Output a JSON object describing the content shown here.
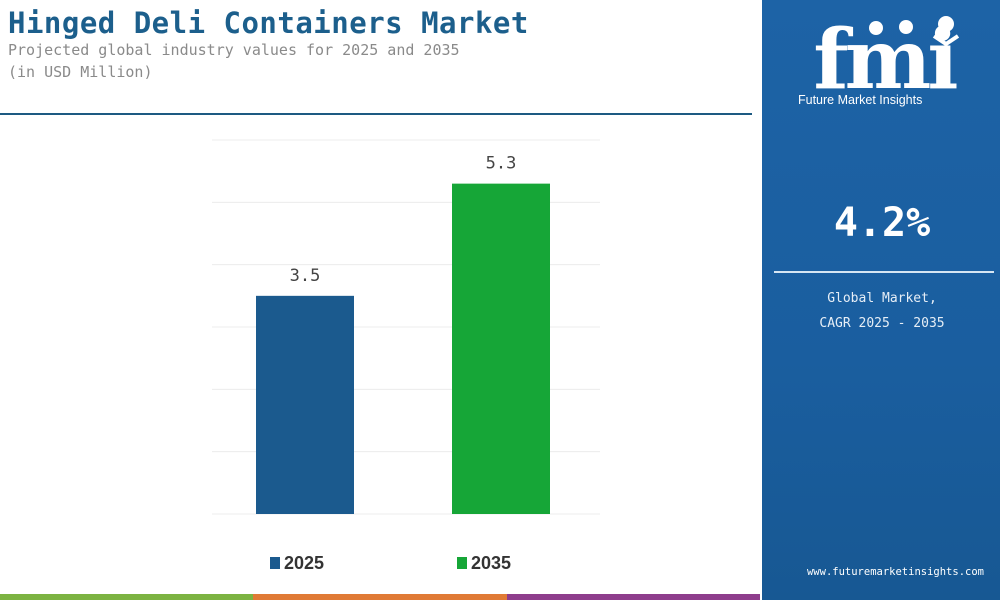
{
  "title": "Hinged Deli Containers Market",
  "subtitle_line1": "Projected global industry values for 2025 and 2035",
  "subtitle_line2": "(in USD Million)",
  "sidebar": {
    "logo_text": "fmi",
    "logo_tagline": "Future Market Insights",
    "cagr_value": "4.2%",
    "cagr_label": "Global Market,\nCAGR 2025 - 2035",
    "website": "www.futuremarketinsights.com"
  },
  "colors": {
    "title": "#1c5f8c",
    "sidebar_bg": "#1a5e9f",
    "bar_2025": "#1b5a8e",
    "bar_2035": "#16a637"
  },
  "chart_data": {
    "type": "bar",
    "categories": [
      "2025",
      "2035"
    ],
    "values": [
      3.5,
      5.3
    ],
    "data_labels": [
      "3.5",
      "5.3"
    ],
    "colors": [
      "#1b5a8e",
      "#16a637"
    ],
    "legend": [
      "2025",
      "2035"
    ],
    "legend_position": "bottom",
    "ylim": [
      0,
      6
    ],
    "grid": true,
    "title": "",
    "xlabel": "",
    "ylabel": ""
  }
}
